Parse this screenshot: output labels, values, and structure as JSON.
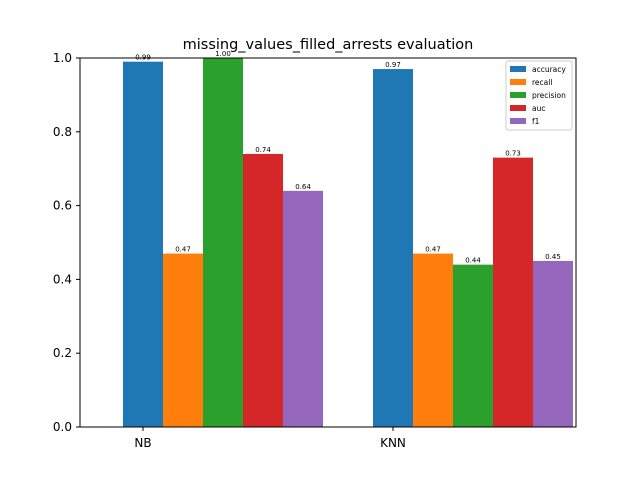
{
  "chart_data": {
    "type": "bar",
    "title": "missing_values_filled_arrests evaluation",
    "xlabel": "",
    "ylabel": "",
    "categories": [
      "NB",
      "KNN"
    ],
    "ylim": [
      0,
      1.0
    ],
    "yticks": [
      "0.0",
      "0.2",
      "0.4",
      "0.6",
      "0.8",
      "1.0"
    ],
    "grid": false,
    "legend_position": "top-right",
    "series": [
      {
        "name": "accuracy",
        "color": "#1f77b4",
        "values": [
          0.99,
          0.97
        ],
        "labels": [
          "0.99",
          "0.97"
        ]
      },
      {
        "name": "recall",
        "color": "#ff7f0e",
        "values": [
          0.47,
          0.47
        ],
        "labels": [
          "0.47",
          "0.47"
        ]
      },
      {
        "name": "precision",
        "color": "#2ca02c",
        "values": [
          1.0,
          0.44
        ],
        "labels": [
          "1.00",
          "0.44"
        ]
      },
      {
        "name": "auc",
        "color": "#d62728",
        "values": [
          0.74,
          0.73
        ],
        "labels": [
          "0.74",
          "0.73"
        ]
      },
      {
        "name": "f1",
        "color": "#9467bd",
        "values": [
          0.64,
          0.45
        ],
        "labels": [
          "0.64",
          "0.45"
        ]
      }
    ]
  }
}
